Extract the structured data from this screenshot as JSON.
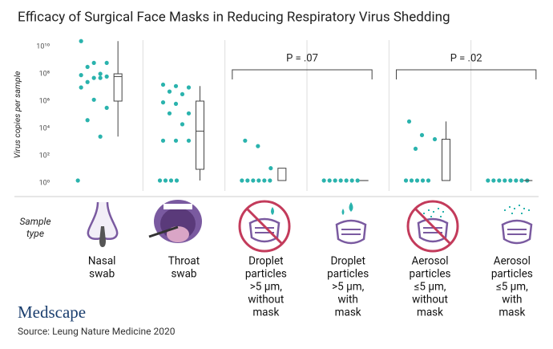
{
  "chart_data": {
    "type": "scatter",
    "title": "Efficacy of Surgical Face Masks in Reducing Respiratory Virus Shedding",
    "y_label": "Virus copies per sample",
    "x_label": [
      "Sample",
      "type"
    ],
    "categories": [
      [
        "Nasal",
        "swab"
      ],
      [
        "Throat",
        "swab"
      ],
      [
        "Droplet",
        "particles",
        ">5 µm,",
        "without",
        "mask"
      ],
      [
        "Droplet",
        "particles",
        ">5 µm,",
        "with",
        "mask"
      ],
      [
        "Aerosol",
        "particles",
        "≤5 µm,",
        "without",
        "mask"
      ],
      [
        "Aerosol",
        "particles",
        "≤5 µm,",
        "with",
        "mask"
      ]
    ],
    "log_y": true,
    "ylim": [
      1,
      10000000000
    ],
    "yticks": [
      {
        "value": 1,
        "label": "10⁰"
      },
      {
        "value": 100,
        "label": "10²"
      },
      {
        "value": 10000,
        "label": "10⁴"
      },
      {
        "value": 1000000,
        "label": "10⁶"
      },
      {
        "value": 100000000,
        "label": "10⁸"
      },
      {
        "value": 10000000000,
        "label": "10¹⁰"
      }
    ],
    "color": "#2ab3ad",
    "points": [
      [
        25000000000,
        630000000,
        630000000,
        320000000,
        100000000,
        80000000,
        50000000,
        63000000,
        25000000,
        50000000,
        10000000,
        1260000,
        320000,
        40000,
        2500,
        1.5
      ],
      [
        16000000,
        12600000,
        10000000,
        5000000,
        3200000,
        800000,
        630000,
        126000,
        126000,
        20000,
        1260,
        1260,
        1260,
        1.5,
        1.5,
        1.5,
        1.5
      ],
      [
        1260,
        500,
        12,
        1.5,
        1.5,
        1.5,
        1.5,
        1.5,
        1.5
      ],
      [
        1.5,
        1.5,
        1.5,
        1.5,
        1.5,
        1.5,
        1.5
      ],
      [
        32000,
        3200,
        1600,
        320,
        1.5,
        1.5,
        1.5,
        1.5,
        1.5
      ],
      [
        1.5,
        1.5,
        1.5,
        1.5,
        1.5,
        1.5,
        1.5,
        1.5
      ]
    ],
    "boxes": [
      {
        "min": 2500,
        "q1": 1000000,
        "median": 63000000,
        "q3": 100000000,
        "max": 25000000000
      },
      {
        "min": 1.5,
        "q1": 10,
        "median": 6300,
        "q3": 1000000,
        "max": 12600000
      },
      {
        "min": 1.5,
        "q1": 1.5,
        "median": 1.5,
        "q3": 12,
        "max": 12
      },
      {
        "min": 1.5,
        "q1": 1.5,
        "median": 1.5,
        "q3": 1.5,
        "max": 1.5
      },
      {
        "min": 1.5,
        "q1": 1.5,
        "median": 1.5,
        "q3": 1600,
        "max": 32000
      },
      {
        "min": 1.5,
        "q1": 1.5,
        "median": 1.5,
        "q3": 1.5,
        "max": 1.5
      }
    ],
    "annotations": [
      {
        "text": "P = .07",
        "from": 2,
        "to": 3
      },
      {
        "text": "P = .02",
        "from": 4,
        "to": 5
      }
    ],
    "logo": "Medscape",
    "source": "Source: Leung Nature Medicine 2020"
  }
}
